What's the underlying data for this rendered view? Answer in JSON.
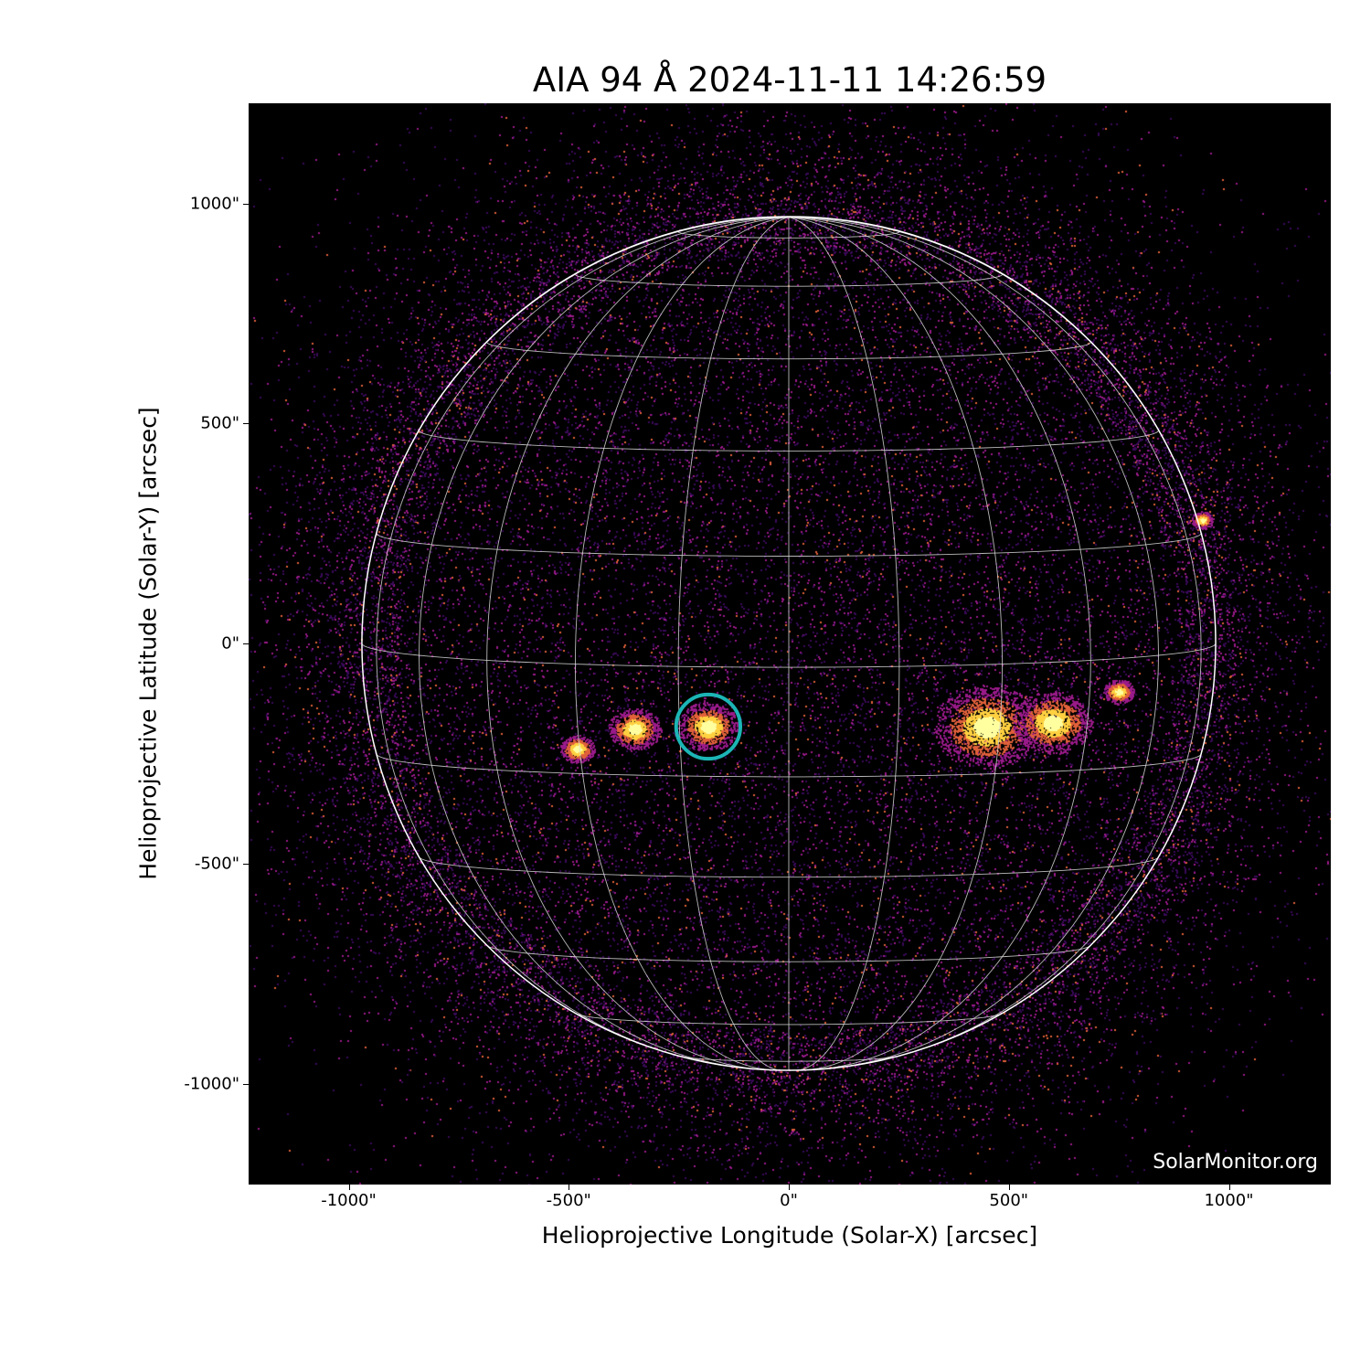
{
  "chart_data": {
    "type": "image",
    "title": "AIA 94 Å 2024-11-11 14:26:59",
    "xlabel": "Helioprojective Longitude (Solar-X) [arcsec]",
    "ylabel": "Helioprojective Latitude (Solar-Y) [arcsec]",
    "xlim": [
      -1229,
      1233
    ],
    "ylim": [
      -1232,
      1226
    ],
    "xticks": [
      {
        "value": -1000,
        "label": "-1000\""
      },
      {
        "value": -500,
        "label": "-500\""
      },
      {
        "value": 0,
        "label": "0\""
      },
      {
        "value": 500,
        "label": "500\""
      },
      {
        "value": 1000,
        "label": "1000\""
      }
    ],
    "yticks": [
      {
        "value": 1000,
        "label": "1000\""
      },
      {
        "value": 500,
        "label": "500\""
      },
      {
        "value": 0,
        "label": "0\""
      },
      {
        "value": -500,
        "label": "-500\""
      },
      {
        "value": -1000,
        "label": "-1000\""
      }
    ],
    "solar_radius_arcsec": 970,
    "grid": {
      "type": "heliographic",
      "spacing_deg": 15,
      "b0_deg": 3.2,
      "color": "#d8d8d8"
    },
    "background_color": "#000000",
    "colormap": [
      "#000000",
      "#3a0a5a",
      "#9a1a8a",
      "#e0603a",
      "#ffd040",
      "#ffffa0"
    ],
    "bright_regions": [
      {
        "x": -183,
        "y": -189,
        "size": 70
      },
      {
        "x": -350,
        "y": -195,
        "size": 60
      },
      {
        "x": 750,
        "y": -110,
        "size": 35
      },
      {
        "x": 450,
        "y": -190,
        "size": 120
      },
      {
        "x": 600,
        "y": -180,
        "size": 90
      },
      {
        "x": -480,
        "y": -240,
        "size": 40
      },
      {
        "x": 940,
        "y": 280,
        "size": 25
      }
    ],
    "annotations": [
      {
        "type": "circle",
        "x": -183,
        "y": -189,
        "radius": 73,
        "color": "#1cb5b5"
      }
    ],
    "watermark": "SolarMonitor.org"
  }
}
